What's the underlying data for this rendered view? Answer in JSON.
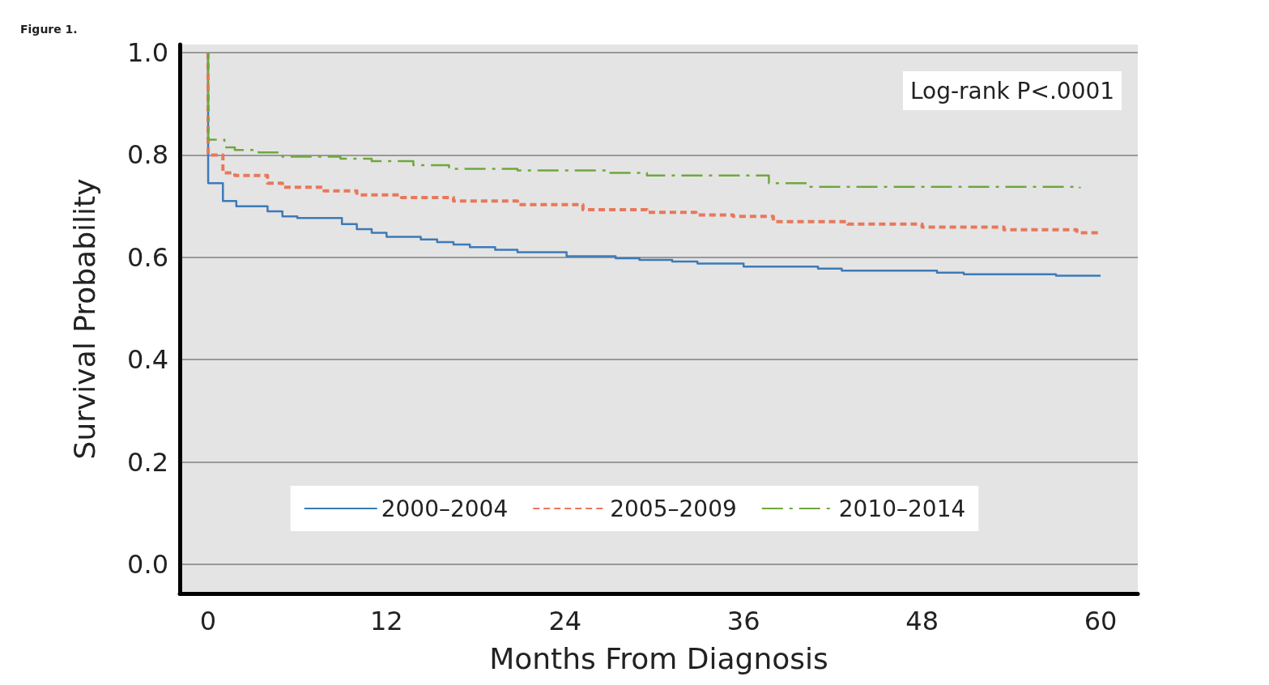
{
  "chart_data": {
    "type": "step",
    "title": "Figure 1.",
    "xlabel": "Months From Diagnosis",
    "ylabel": "Survival Probability",
    "annotations": [
      "Log-rank P<.0001"
    ],
    "xlim": [
      -1.9,
      62.5
    ],
    "ylim": [
      -0.057,
      1.016
    ],
    "xticks": [
      0,
      12,
      24,
      36,
      48,
      60
    ],
    "yticks": [
      {
        "value": 0,
        "label": "0.0"
      },
      0.2,
      0.4,
      0.6,
      0.8,
      {
        "value": 1,
        "label": "1.0"
      }
    ],
    "grid": "y",
    "legend": "bottom",
    "marker": "none",
    "series": [
      {
        "name": "2000–2004",
        "color": "#3d7ab8",
        "line_style": "solid",
        "x": [
          0,
          0.01,
          1,
          1.9,
          4,
          5,
          6,
          9,
          10,
          11,
          12,
          14.3,
          15.4,
          16.5,
          17.6,
          19.3,
          20.8,
          24.1,
          27.4,
          29,
          31.2,
          32.9,
          36,
          41,
          42.6,
          49,
          50.8,
          57,
          60
        ],
        "values": [
          1.0,
          0.745,
          0.71,
          0.7,
          0.69,
          0.68,
          0.677,
          0.665,
          0.655,
          0.648,
          0.64,
          0.635,
          0.63,
          0.625,
          0.62,
          0.615,
          0.61,
          0.602,
          0.598,
          0.595,
          0.592,
          0.588,
          0.582,
          0.578,
          0.574,
          0.57,
          0.567,
          0.564,
          0.564
        ]
      },
      {
        "name": "2005–2009",
        "color": "#e8785a",
        "line_style": "dashed",
        "x": [
          0,
          0.01,
          1,
          1.8,
          4,
          5,
          7.8,
          10,
          13,
          16.5,
          20.8,
          25.2,
          29.5,
          32.8,
          35.3,
          38,
          43,
          48,
          53.5,
          58.4,
          60
        ],
        "values": [
          1.0,
          0.8,
          0.765,
          0.76,
          0.745,
          0.737,
          0.73,
          0.722,
          0.717,
          0.71,
          0.703,
          0.693,
          0.688,
          0.683,
          0.68,
          0.67,
          0.665,
          0.659,
          0.654,
          0.648,
          0.646
        ]
      },
      {
        "name": "2010–2014",
        "color": "#6fa83c",
        "line_style": "dashdot",
        "x": [
          0,
          0.01,
          1.1,
          1.8,
          3.4,
          5,
          8.9,
          11,
          13.8,
          16.2,
          20.8,
          26.8,
          29.5,
          37.7,
          40.4,
          58.6
        ],
        "values": [
          1.0,
          0.83,
          0.815,
          0.81,
          0.805,
          0.797,
          0.793,
          0.788,
          0.78,
          0.773,
          0.77,
          0.765,
          0.76,
          0.745,
          0.738,
          0.735
        ]
      }
    ]
  }
}
